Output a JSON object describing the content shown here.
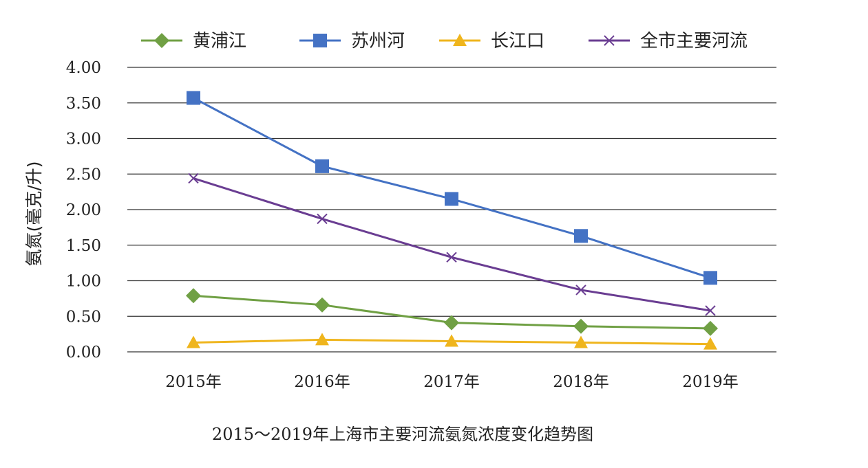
{
  "chart_data": {
    "type": "line",
    "title": "2015～2019年上海市主要河流氨氮浓度变化趋势图",
    "xlabel": "",
    "ylabel": "氨氮(毫克/升)",
    "categories": [
      "2015年",
      "2016年",
      "2017年",
      "2018年",
      "2019年"
    ],
    "ylim": [
      0,
      4
    ],
    "yticks": [
      "0.00",
      "0.50",
      "1.00",
      "1.50",
      "2.00",
      "2.50",
      "3.00",
      "3.50",
      "4.00"
    ],
    "ytick_values": [
      0,
      0.5,
      1,
      1.5,
      2,
      2.5,
      3,
      3.5,
      4
    ],
    "grid": true,
    "legend_position": "top",
    "series": [
      {
        "name": "黄浦江",
        "values": [
          0.79,
          0.66,
          0.41,
          0.36,
          0.33
        ],
        "color": "#70A044",
        "marker": "diamond"
      },
      {
        "name": "苏州河",
        "values": [
          3.57,
          2.61,
          2.15,
          1.63,
          1.04
        ],
        "color": "#4472C4",
        "marker": "square"
      },
      {
        "name": "长江口",
        "values": [
          0.13,
          0.17,
          0.15,
          0.13,
          0.11
        ],
        "color": "#EFB51D",
        "marker": "triangle"
      },
      {
        "name": "全市主要河流",
        "values": [
          2.44,
          1.87,
          1.33,
          0.87,
          0.58
        ],
        "color": "#6A3D92",
        "marker": "x"
      }
    ]
  }
}
